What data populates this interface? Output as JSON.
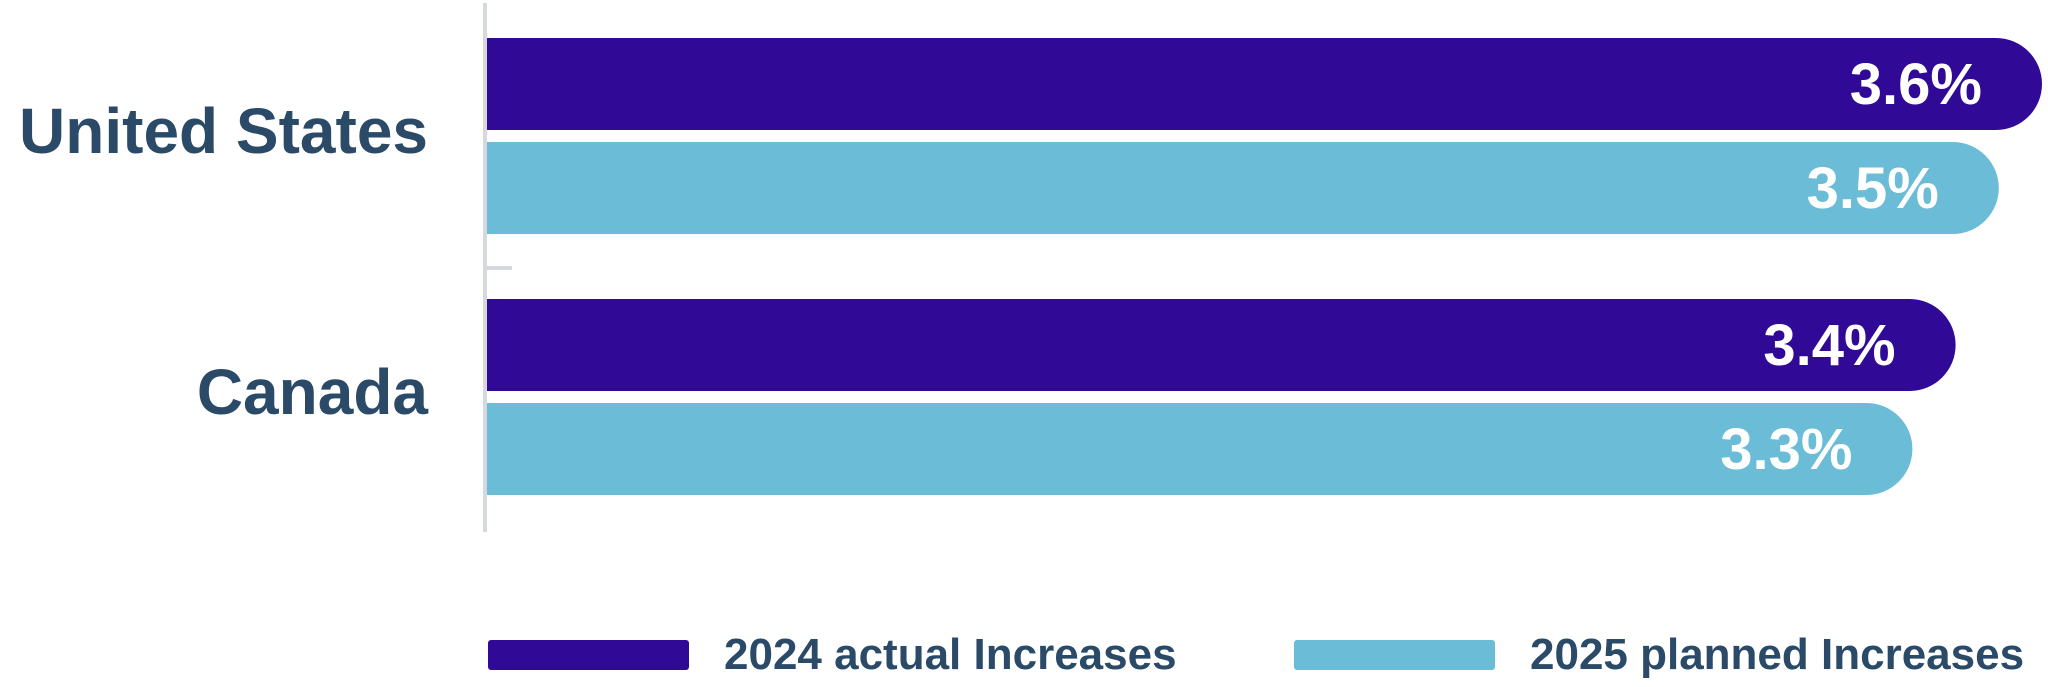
{
  "chart_data": {
    "type": "bar",
    "orientation": "horizontal",
    "categories": [
      "United States",
      "Canada"
    ],
    "series": [
      {
        "name": "2024 actual Increases",
        "values": [
          3.6,
          3.4
        ],
        "labels": [
          "3.6%",
          "3.4%"
        ],
        "color": "#300a96"
      },
      {
        "name": "2025 planned Increases",
        "values": [
          3.5,
          3.3
        ],
        "labels": [
          "3.5%",
          "3.3%"
        ],
        "color": "#6bbcd6"
      }
    ],
    "value_axis": {
      "visible": false,
      "min": 0,
      "max": 3.6
    },
    "grid": false,
    "legend_position": "bottom",
    "title": "",
    "xlabel": "",
    "ylabel": ""
  },
  "colors": {
    "category_text": "#2a4a68",
    "axis_line": "#d5d9df",
    "value_text": "#ffffff"
  }
}
